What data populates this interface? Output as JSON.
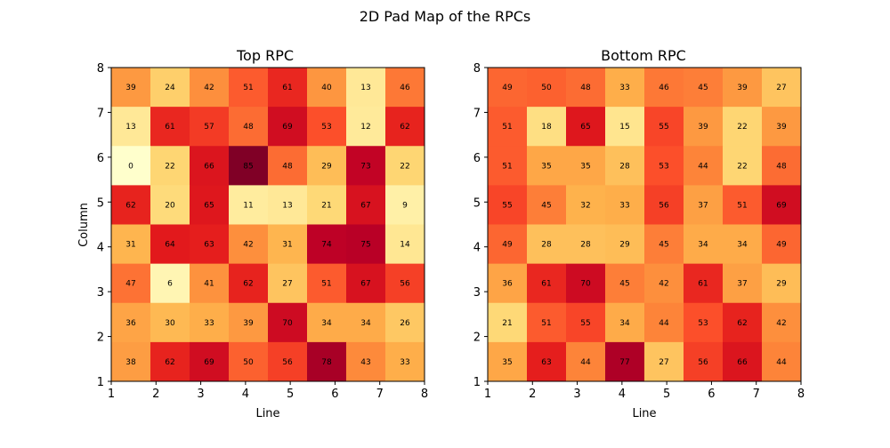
{
  "figure": {
    "title": "2D Pad Map of the RPCs"
  },
  "colors": {
    "colormap": "YlOrRd",
    "scale_min": 0,
    "scale_max": 85,
    "axis_color": "#000000"
  },
  "chart_data": [
    {
      "type": "heatmap",
      "title": "Top RPC",
      "xlabel": "Line",
      "ylabel": "Column",
      "xlim": [
        1,
        8
      ],
      "ylim": [
        1,
        8
      ],
      "xticks": [
        "1",
        "2",
        "3",
        "4",
        "5",
        "6",
        "7",
        "8"
      ],
      "yticks": [
        "1",
        "2",
        "3",
        "4",
        "5",
        "6",
        "7",
        "8"
      ],
      "grid": false,
      "rows_top_to_bottom": [
        [
          39,
          24,
          42,
          51,
          61,
          40,
          13,
          46
        ],
        [
          13,
          61,
          57,
          48,
          69,
          53,
          12,
          62
        ],
        [
          0,
          22,
          66,
          85,
          48,
          29,
          73,
          22
        ],
        [
          62,
          20,
          65,
          11,
          13,
          21,
          67,
          9
        ],
        [
          31,
          64,
          63,
          42,
          31,
          74,
          75,
          14
        ],
        [
          47,
          6,
          41,
          62,
          27,
          51,
          67,
          56
        ],
        [
          36,
          30,
          33,
          39,
          70,
          34,
          34,
          26
        ],
        [
          38,
          62,
          69,
          50,
          56,
          78,
          43,
          33
        ]
      ]
    },
    {
      "type": "heatmap",
      "title": "Bottom RPC",
      "xlabel": "Line",
      "ylabel": "",
      "xlim": [
        1,
        8
      ],
      "ylim": [
        1,
        8
      ],
      "xticks": [
        "1",
        "2",
        "3",
        "4",
        "5",
        "6",
        "7",
        "8"
      ],
      "yticks": [
        "1",
        "2",
        "3",
        "4",
        "5",
        "6",
        "7",
        "8"
      ],
      "grid": false,
      "rows_top_to_bottom": [
        [
          49,
          50,
          48,
          33,
          46,
          45,
          39,
          27
        ],
        [
          51,
          18,
          65,
          15,
          55,
          39,
          22,
          39
        ],
        [
          51,
          35,
          35,
          28,
          53,
          44,
          22,
          48
        ],
        [
          55,
          45,
          32,
          33,
          56,
          37,
          51,
          69
        ],
        [
          49,
          28,
          28,
          29,
          45,
          34,
          34,
          49
        ],
        [
          36,
          61,
          70,
          45,
          42,
          61,
          37,
          29
        ],
        [
          21,
          51,
          55,
          34,
          44,
          53,
          62,
          42
        ],
        [
          35,
          63,
          44,
          77,
          27,
          56,
          66,
          44
        ]
      ]
    }
  ]
}
